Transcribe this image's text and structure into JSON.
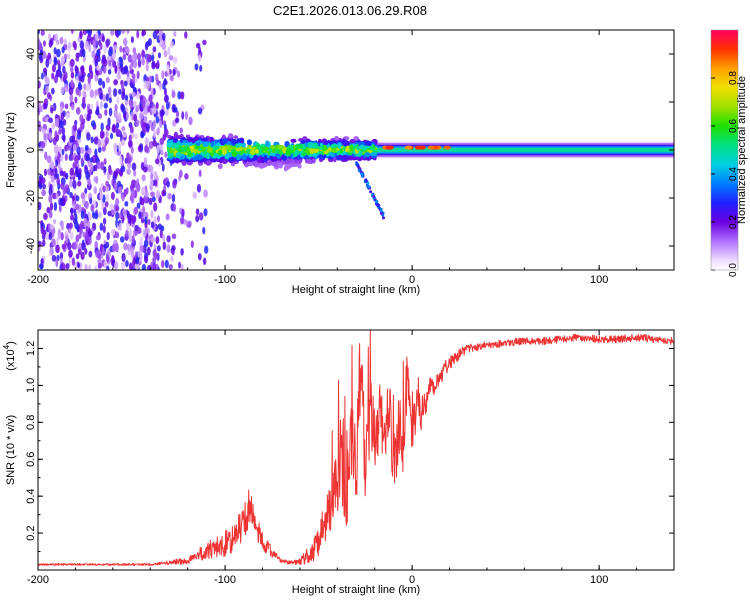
{
  "title": "C2E1.2026.013.06.29.R08",
  "chart_data": [
    {
      "type": "heatmap",
      "xlabel": "Height of straight line (km)",
      "ylabel": "Frequency (Hz)",
      "xlim": [
        -200,
        140
      ],
      "ylim": [
        -50,
        50
      ],
      "xticks": [
        -200,
        -100,
        0,
        100
      ],
      "xtick_labels": [
        "-200",
        "-100",
        "0",
        "100"
      ],
      "yticks": [
        -40,
        -20,
        0,
        20,
        40
      ],
      "ytick_labels": [
        "-40",
        "-20",
        "0",
        "20",
        "40"
      ],
      "colorbar": {
        "label": "Normalized spectral amplitude",
        "range": [
          0,
          1
        ],
        "ticks": [
          0.0,
          0.2,
          0.4,
          0.6,
          0.8
        ],
        "tick_labels": [
          "0.0",
          "0.2",
          "0.4",
          "0.6",
          "0.8"
        ]
      },
      "regions": [
        {
          "name": "broadband-noise",
          "x": [
            -200,
            -120
          ],
          "y": [
            -50,
            50
          ],
          "amplitude": 0.15
        },
        {
          "name": "transition",
          "x": [
            -130,
            -20
          ],
          "y_center": 0,
          "y_halfwidth": 8,
          "amplitude": 0.4
        },
        {
          "name": "tail",
          "x": [
            -30,
            -15
          ],
          "y": [
            -28,
            -5
          ],
          "amplitude": 0.2
        },
        {
          "name": "carrier",
          "x": [
            -20,
            140
          ],
          "y_center": 0,
          "y_halfwidth": 3,
          "amplitude": 0.5
        },
        {
          "name": "peaks",
          "x": [
            -15,
            20
          ],
          "y_center": 1,
          "amplitude": 0.95
        }
      ]
    },
    {
      "type": "line",
      "xlabel": "Height of straight line (km)",
      "ylabel": "SNR (10 * v/v)",
      "multiplier_label": "(x10",
      "multiplier_exp": "4",
      "multiplier_close": ")",
      "xlim": [
        -200,
        140
      ],
      "ylim": [
        0,
        1.3
      ],
      "xticks": [
        -200,
        -100,
        0,
        100
      ],
      "xtick_labels": [
        "-200",
        "-100",
        "0",
        "100"
      ],
      "yticks": [
        0.2,
        0.4,
        0.6,
        0.8,
        1.0,
        1.2
      ],
      "ytick_labels": [
        "0.2",
        "0.4",
        "0.6",
        "0.8",
        "1.0",
        "1.2"
      ],
      "color": "#ee3333",
      "series": [
        {
          "name": "SNR",
          "x": [
            -200,
            -180,
            -160,
            -140,
            -130,
            -120,
            -115,
            -110,
            -105,
            -100,
            -95,
            -90,
            -87,
            -85,
            -80,
            -75,
            -70,
            -65,
            -60,
            -55,
            -50,
            -47,
            -45,
            -42,
            -40,
            -38,
            -35,
            -32,
            -30,
            -28,
            -25,
            -22,
            -20,
            -17,
            -15,
            -12,
            -10,
            -7,
            -5,
            -2,
            0,
            3,
            5,
            8,
            10,
            12,
            15,
            18,
            20,
            25,
            30,
            35,
            40,
            50,
            60,
            70,
            80,
            90,
            100,
            110,
            120,
            130,
            140
          ],
          "y": [
            0.03,
            0.03,
            0.03,
            0.03,
            0.04,
            0.05,
            0.08,
            0.1,
            0.12,
            0.14,
            0.18,
            0.25,
            0.35,
            0.28,
            0.15,
            0.1,
            0.05,
            0.04,
            0.05,
            0.08,
            0.15,
            0.25,
            0.3,
            0.4,
            0.45,
            0.6,
            0.4,
            0.8,
            0.5,
            1.05,
            0.6,
            0.9,
            0.7,
            0.85,
            0.6,
            0.9,
            0.55,
            0.8,
            0.7,
            1.05,
            0.75,
            0.9,
            0.85,
            0.95,
            1.0,
            1.0,
            1.05,
            1.1,
            1.12,
            1.17,
            1.2,
            1.21,
            1.22,
            1.23,
            1.24,
            1.24,
            1.25,
            1.26,
            1.25,
            1.25,
            1.26,
            1.25,
            1.24
          ],
          "noise": [
            0.005,
            0.005,
            0.005,
            0.006,
            0.01,
            0.02,
            0.03,
            0.05,
            0.06,
            0.07,
            0.08,
            0.1,
            0.1,
            0.09,
            0.05,
            0.03,
            0.01,
            0.01,
            0.02,
            0.05,
            0.08,
            0.12,
            0.12,
            0.18,
            0.2,
            0.25,
            0.25,
            0.25,
            0.25,
            0.2,
            0.25,
            0.25,
            0.2,
            0.2,
            0.2,
            0.2,
            0.2,
            0.18,
            0.18,
            0.15,
            0.12,
            0.1,
            0.1,
            0.08,
            0.08,
            0.06,
            0.05,
            0.04,
            0.04,
            0.03,
            0.025,
            0.02,
            0.02,
            0.02,
            0.02,
            0.02,
            0.02,
            0.02,
            0.02,
            0.02,
            0.02,
            0.02,
            0.02
          ]
        }
      ]
    }
  ]
}
